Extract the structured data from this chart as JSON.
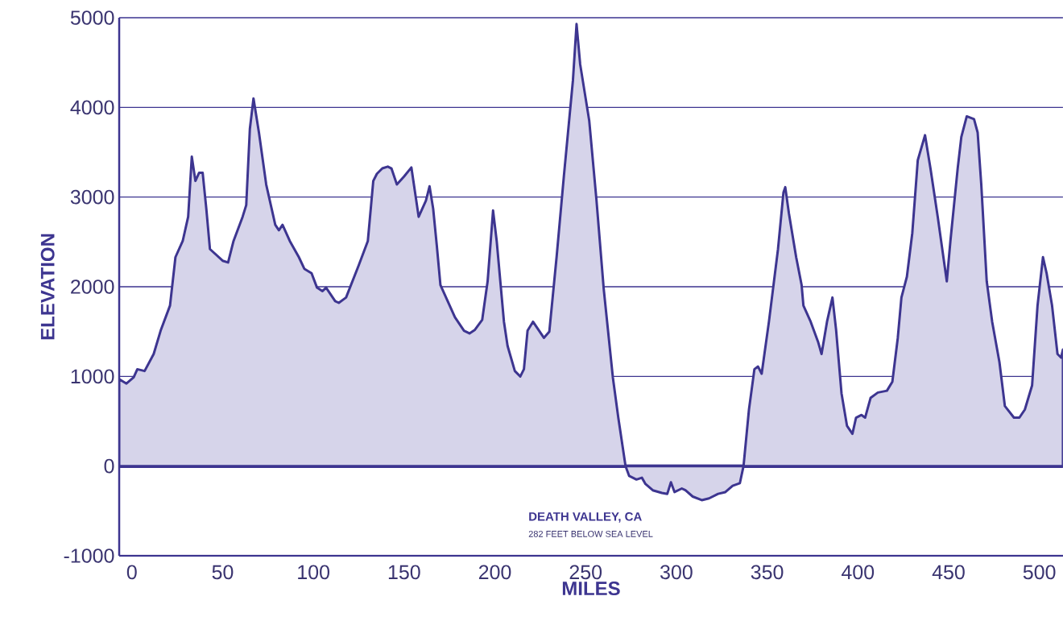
{
  "chart_data": {
    "type": "area",
    "xlabel": "MILES",
    "ylabel": "ELEVATION",
    "annotations": [
      "DEATH VALLEY, CA",
      "282 FEET BELOW SEA LEVEL"
    ],
    "x": [
      -7,
      -3,
      1,
      3,
      7,
      12,
      16,
      21,
      24,
      28,
      31,
      33,
      35,
      37,
      39,
      41,
      43,
      50,
      53,
      56,
      61,
      63,
      65,
      67,
      70,
      74,
      79,
      81,
      83,
      87,
      92,
      95,
      99,
      102,
      105,
      107,
      112,
      114,
      118,
      125,
      130,
      133,
      135,
      138,
      141,
      143,
      146,
      150,
      154,
      158,
      162,
      164,
      166,
      168,
      170,
      174,
      178,
      183,
      186,
      189,
      193,
      196,
      199,
      201,
      203,
      205,
      207,
      211,
      214,
      216,
      218,
      221,
      224,
      227,
      230,
      234,
      238,
      243,
      245,
      247,
      252,
      256,
      260,
      265,
      268,
      272,
      274,
      278,
      281,
      283,
      287,
      292,
      295,
      297,
      299,
      303,
      305,
      309,
      314,
      318,
      323,
      327,
      331,
      335,
      337,
      340,
      343,
      345,
      347,
      351,
      356,
      359,
      360,
      362,
      366,
      369,
      370,
      374,
      378,
      380,
      383,
      386,
      388,
      391,
      394,
      397,
      399,
      402,
      404,
      407,
      411,
      416,
      419,
      422,
      424,
      427,
      430,
      433,
      437,
      440,
      444,
      449,
      451,
      455,
      457,
      460,
      464,
      466,
      468,
      471,
      474,
      478,
      481,
      486,
      489,
      492,
      496,
      499,
      502,
      504,
      507,
      510,
      512,
      513
    ],
    "series": [
      {
        "color": "#d6d4ea",
        "values": [
          970,
          920,
          990,
          1080,
          1060,
          1250,
          1520,
          1790,
          2330,
          2510,
          2780,
          3450,
          3180,
          3270,
          3270,
          2870,
          2420,
          2290,
          2270,
          2510,
          2780,
          2910,
          3760,
          4100,
          3720,
          3140,
          2690,
          2630,
          2690,
          2510,
          2330,
          2200,
          2150,
          1990,
          1950,
          1990,
          1840,
          1820,
          1880,
          2240,
          2510,
          3180,
          3260,
          3320,
          3340,
          3320,
          3140,
          3230,
          3330,
          2780,
          2960,
          3120,
          2870,
          2460,
          2020,
          1840,
          1660,
          1510,
          1480,
          1520,
          1630,
          2060,
          2850,
          2510,
          2060,
          1610,
          1340,
          1060,
          1000,
          1080,
          1510,
          1610,
          1520,
          1430,
          1500,
          2330,
          3230,
          4300,
          4930,
          4480,
          3850,
          2960,
          1970,
          990,
          540,
          0,
          -110,
          -150,
          -130,
          -200,
          -270,
          -300,
          -310,
          -180,
          -290,
          -250,
          -270,
          -340,
          -380,
          -360,
          -310,
          -290,
          -220,
          -190,
          0,
          630,
          1080,
          1110,
          1030,
          1610,
          2420,
          3050,
          3110,
          2820,
          2330,
          2020,
          1790,
          1610,
          1390,
          1250,
          1610,
          1880,
          1520,
          810,
          450,
          360,
          540,
          570,
          540,
          760,
          820,
          840,
          940,
          1430,
          1880,
          2110,
          2600,
          3410,
          3690,
          3320,
          2780,
          2060,
          2510,
          3320,
          3670,
          3900,
          3870,
          3720,
          3140,
          2060,
          1610,
          1160,
          670,
          540,
          540,
          630,
          900,
          1790,
          2330,
          2150,
          1790,
          1250,
          1210,
          1300
        ]
      }
    ],
    "xlim": [
      -7,
      513
    ],
    "ylim": [
      -1000,
      5000
    ],
    "xticks": [
      0,
      50,
      100,
      150,
      200,
      250,
      300,
      350,
      400,
      450,
      500
    ],
    "yticks": [
      -1000,
      0,
      1000,
      2000,
      3000,
      4000,
      5000
    ],
    "grid": "y",
    "ref_lines": [
      {
        "axis": "y",
        "value": 0
      }
    ]
  }
}
